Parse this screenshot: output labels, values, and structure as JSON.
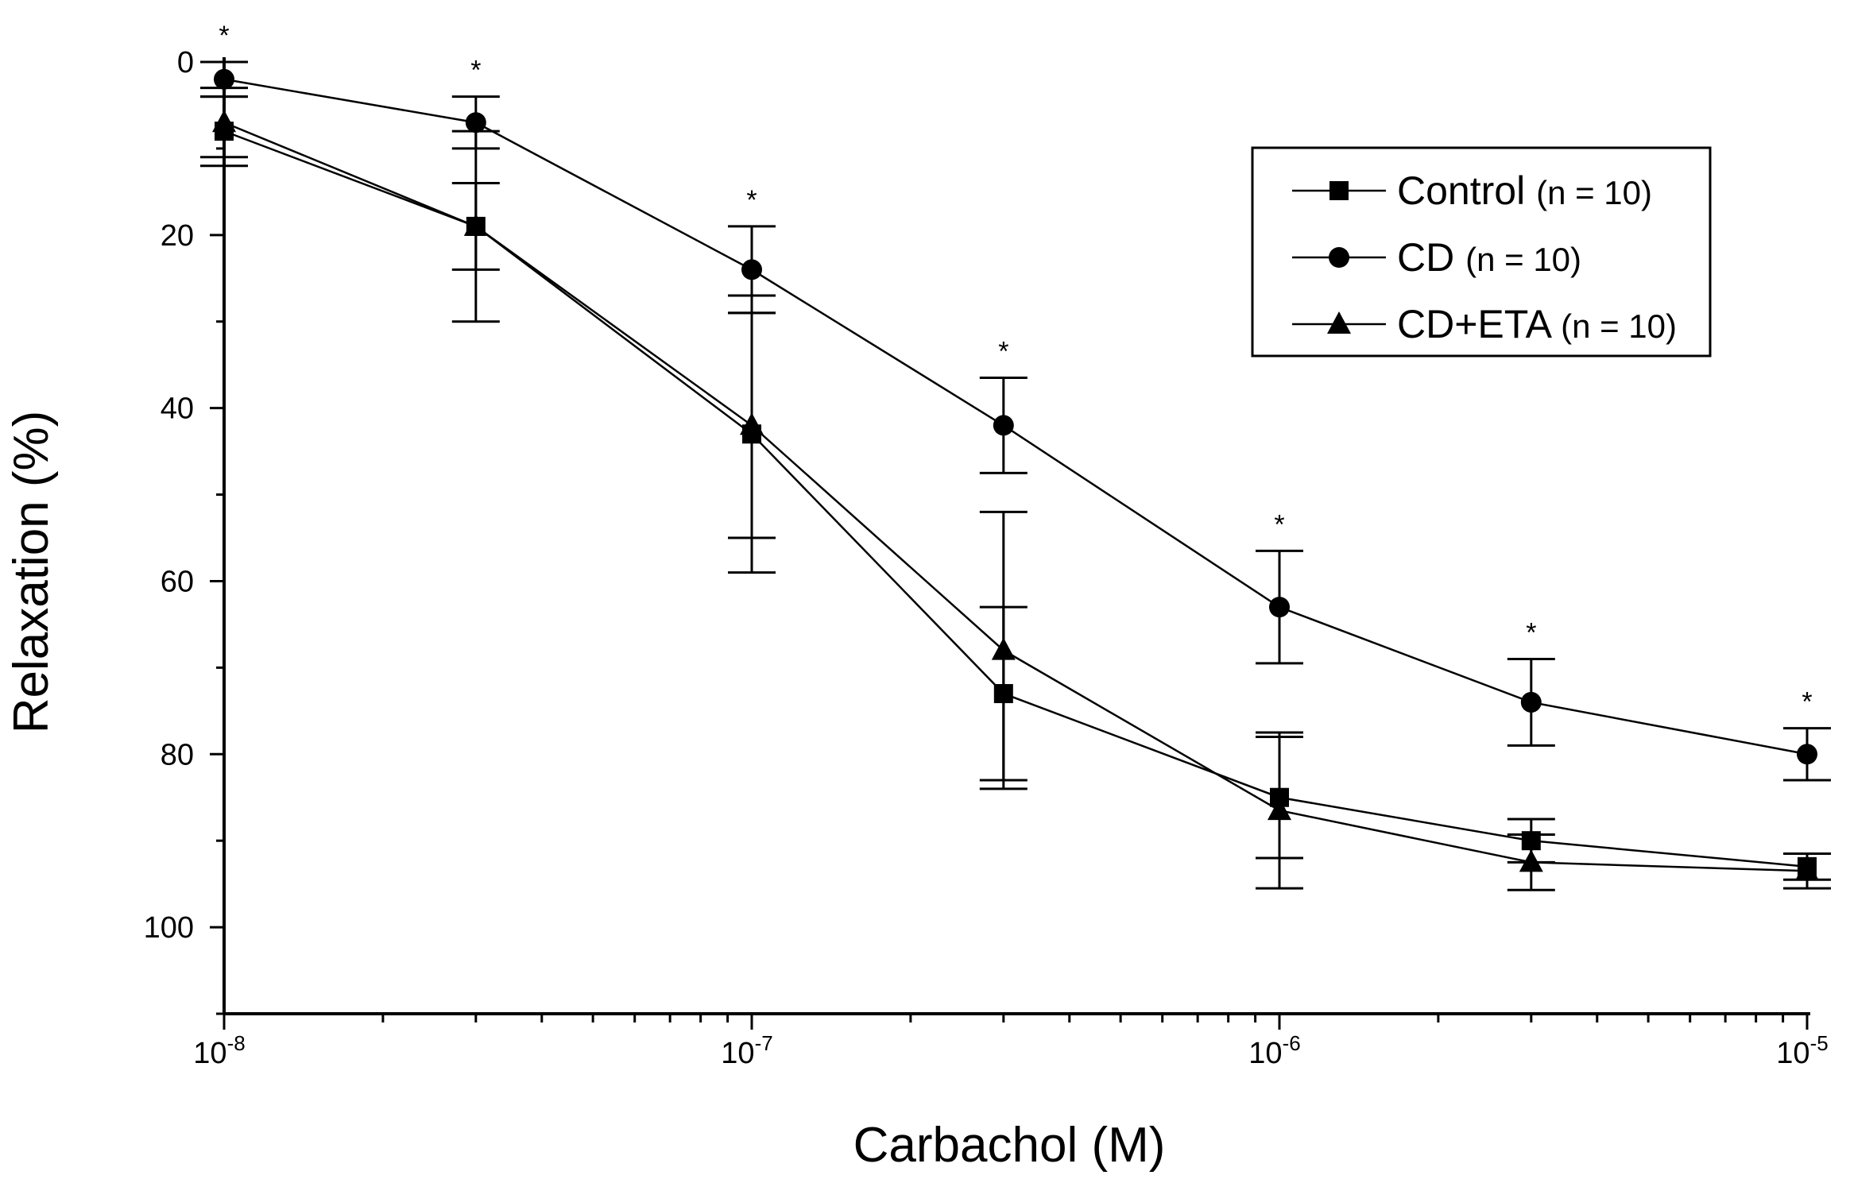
{
  "chart_data": {
    "type": "line",
    "title": "",
    "xlabel": "Carbachol (M)",
    "ylabel": "Relaxation  (%)",
    "x_scale": "log",
    "xlim": [
      1e-08,
      1e-05
    ],
    "ylim": [
      0,
      110
    ],
    "y_inverted": true,
    "yticks": [
      0,
      20,
      40,
      60,
      80,
      100
    ],
    "ytick_labels": [
      "0",
      "20",
      "40",
      "60",
      "80",
      "100"
    ],
    "xticks": [
      {
        "value": 1e-08,
        "base": "10",
        "exp": "-8"
      },
      {
        "value": 1e-07,
        "base": "10",
        "exp": "-7"
      },
      {
        "value": 1e-06,
        "base": "10",
        "exp": "-6"
      },
      {
        "value": 1e-05,
        "base": "10",
        "exp": "-5"
      }
    ],
    "x": [
      1e-08,
      3e-08,
      1e-07,
      3e-07,
      1e-06,
      3e-06,
      1e-05
    ],
    "series": [
      {
        "name": "Control",
        "n_label": "(n = 10)",
        "marker": "square",
        "values": [
          8,
          19,
          43,
          73,
          85,
          90,
          93
        ],
        "errors": [
          4,
          5,
          16,
          10,
          7,
          2.5,
          1.5
        ]
      },
      {
        "name": "CD",
        "n_label": "(n = 10)",
        "marker": "circle",
        "values": [
          2,
          7,
          24,
          42,
          63,
          74,
          80
        ],
        "errors": [
          2,
          3,
          5,
          5.5,
          6.5,
          5,
          3
        ]
      },
      {
        "name": "CD+ETA",
        "n_label": "(n = 10)",
        "marker": "triangle",
        "values": [
          7,
          19,
          42,
          68,
          86.5,
          92.5,
          93.5
        ],
        "errors": [
          4,
          11,
          13,
          16,
          9,
          3.2,
          2
        ]
      }
    ],
    "significance_marks": [
      "*",
      "*",
      "*",
      "*",
      "*",
      "*",
      "*"
    ],
    "legend": {
      "position": "top-right"
    },
    "grid": false
  }
}
